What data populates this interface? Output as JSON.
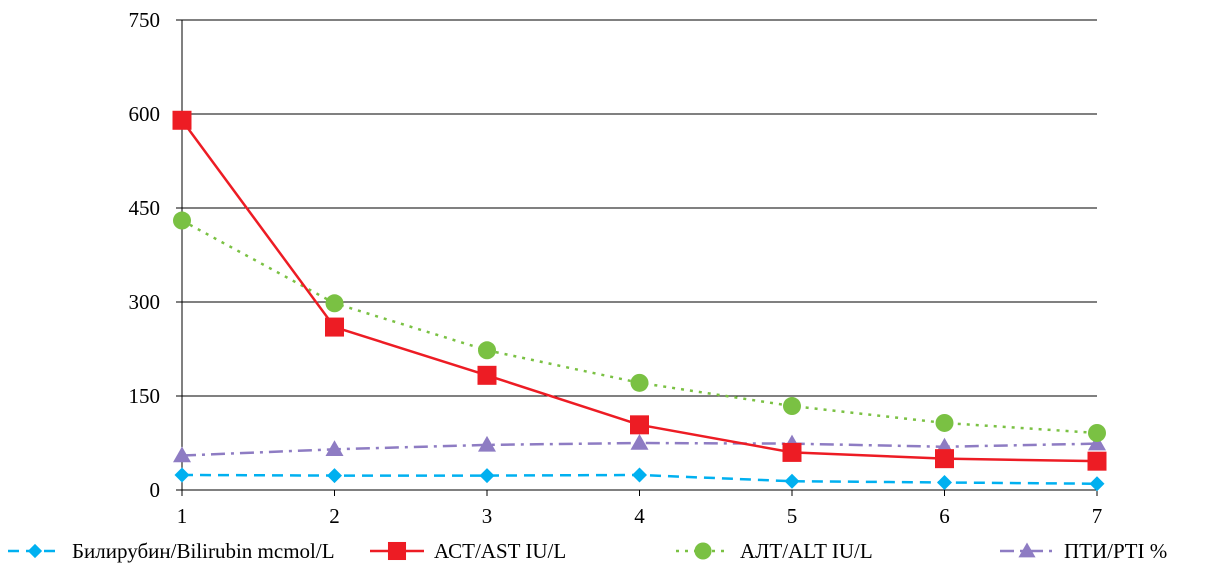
{
  "chart_data": {
    "type": "line",
    "title": "",
    "xlabel": "",
    "ylabel": "",
    "x": [
      1,
      2,
      3,
      4,
      5,
      6,
      7
    ],
    "x_tick_labels": [
      "1",
      "2",
      "3",
      "4",
      "5",
      "6",
      "7"
    ],
    "y_tick_labels": [
      "0",
      "150",
      "300",
      "450",
      "600",
      "750"
    ],
    "ylim": [
      0,
      750
    ],
    "y_ticks": [
      0,
      150,
      300,
      450,
      600,
      750
    ],
    "grid": "horizontal",
    "legend_position": "bottom",
    "series": [
      {
        "name": "Билирубин/Bilirubin mcmol/L",
        "values": [
          24,
          23,
          23,
          24,
          14,
          12,
          10
        ],
        "color": "#00B0F0",
        "marker": "diamond",
        "line_style": "dashed"
      },
      {
        "name": "АСТ/AST IU/L",
        "values": [
          590,
          260,
          183,
          104,
          60,
          50,
          46
        ],
        "color": "#ED1C24",
        "marker": "square",
        "line_style": "solid"
      },
      {
        "name": "АЛТ/ALT IU/L",
        "values": [
          430,
          298,
          223,
          171,
          134,
          107,
          91
        ],
        "color": "#7AC143",
        "marker": "circle",
        "line_style": "dotted"
      },
      {
        "name": "ПТИ/PTI %",
        "values": [
          55,
          65,
          72,
          75,
          74,
          69,
          74
        ],
        "color": "#8E7CC3",
        "marker": "triangle",
        "line_style": "dash-dot"
      }
    ]
  }
}
